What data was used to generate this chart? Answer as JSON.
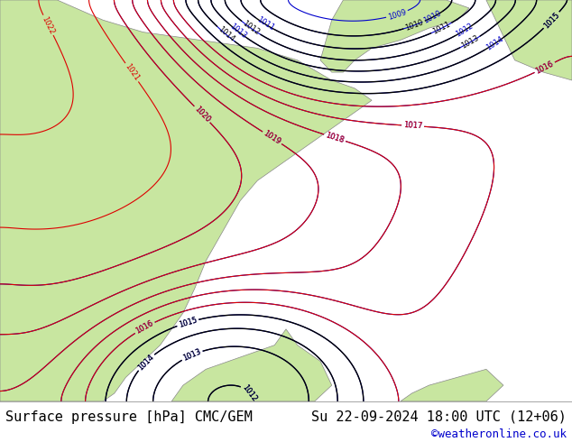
{
  "title_left": "Surface pressure [hPa] CMC/GEM",
  "title_right": "Su 22-09-2024 18:00 UTC (12+06)",
  "copyright": "©weatheronline.co.uk",
  "ocean_color": "#cce8f4",
  "land_color": "#c8e6a0",
  "coast_color": "#888888",
  "contour_color_red": "#dd0000",
  "contour_color_blue": "#0000cc",
  "contour_color_black": "#000000",
  "footer_bg": "#ffffff",
  "footer_text_color": "#000000",
  "copyright_color": "#0000cc",
  "font_size_footer": 11,
  "fig_width": 6.34,
  "fig_height": 4.9
}
